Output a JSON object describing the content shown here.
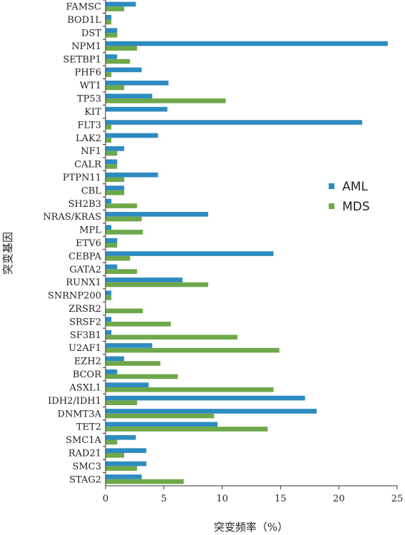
{
  "colors": {
    "aml": "#2e8bc0",
    "mds": "#6ea84a"
  },
  "chart_data": {
    "type": "bar",
    "orientation": "horizontal",
    "xlabel": "突变频率（%）",
    "ylabel": "突变基因",
    "xlim": [
      0,
      25
    ],
    "xticks": [
      "0",
      "5",
      "10",
      "15",
      "20",
      "25"
    ],
    "grid": false,
    "legend": "right-middle",
    "categories": [
      "FAMSC",
      "BOD1L",
      "DST",
      "NPM1",
      "SETBP1",
      "PHF6",
      "WT1",
      "TP53",
      "KIT",
      "FLT3",
      "LAK2",
      "NF1",
      "CALR",
      "PTPN11",
      "CBL",
      "SH2B3",
      "NRAS/KRAS",
      "MPL",
      "ETV6",
      "CEBPA",
      "GATA2",
      "RUNX1",
      "SNRNP200",
      "ZRSR2",
      "SRSF2",
      "SF3B1",
      "U2AF1",
      "EZH2",
      "BCOR",
      "ASXL1",
      "IDH2/IDH1",
      "DNMT3A",
      "TET2",
      "SMC1A",
      "RAD21",
      "SMC3",
      "STAG2"
    ],
    "series": [
      {
        "name": "AML",
        "values": [
          2.6,
          0.5,
          1.0,
          24.2,
          1.0,
          3.1,
          5.4,
          4.0,
          5.3,
          22.0,
          4.5,
          1.6,
          1.0,
          4.5,
          1.6,
          0.5,
          8.8,
          0.5,
          1.0,
          14.4,
          1.0,
          6.6,
          0.5,
          0,
          0.5,
          0.5,
          4.0,
          1.6,
          1.0,
          3.7,
          17.1,
          18.1,
          9.6,
          2.6,
          3.5,
          3.5,
          3.1
        ]
      },
      {
        "name": "MDS",
        "values": [
          1.6,
          0.5,
          1.0,
          2.7,
          2.1,
          0.5,
          1.6,
          10.3,
          0,
          0.5,
          0.5,
          1.0,
          1.0,
          1.6,
          1.6,
          2.7,
          3.1,
          3.2,
          1.0,
          2.1,
          2.7,
          8.8,
          0.5,
          3.2,
          5.6,
          11.3,
          14.9,
          4.7,
          6.2,
          14.4,
          2.7,
          9.3,
          13.9,
          1.0,
          1.6,
          2.7,
          6.7
        ]
      }
    ]
  }
}
